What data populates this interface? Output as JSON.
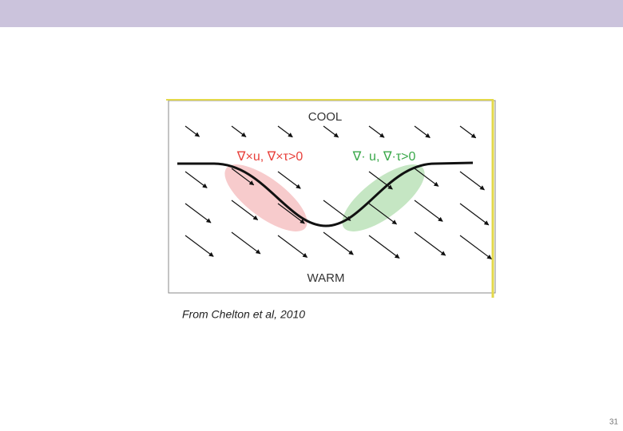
{
  "slide": {
    "figure": {
      "top_label": "COOL",
      "left_label": "∇×u, ∇×τ>0",
      "right_label": "∇· u, ∇·τ>0",
      "bottom_label": "WARM"
    },
    "caption": "From Chelton et al, 2010",
    "page_number": "31"
  }
}
